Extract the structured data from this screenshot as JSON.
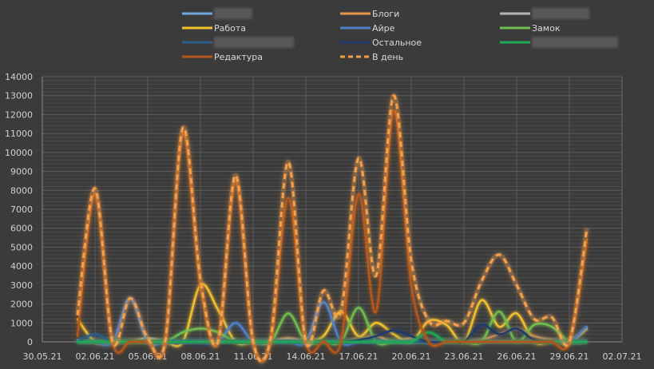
{
  "chart_data": {
    "type": "line",
    "title": "",
    "xlabel": "",
    "ylabel": "",
    "smooth": true,
    "grid": true,
    "legend_position": "top",
    "ylim": [
      0,
      14000
    ],
    "y_ticks": [
      "0",
      "1000",
      "2000",
      "3000",
      "4000",
      "5000",
      "6000",
      "7000",
      "8000",
      "9000",
      "10000",
      "11000",
      "12000",
      "13000",
      "14000"
    ],
    "x_ticks": [
      "30.05.21",
      "02.06.21",
      "05.06.21",
      "08.06.21",
      "11.06.21",
      "14.06.21",
      "17.06.21",
      "20.06.21",
      "23.06.21",
      "26.06.21",
      "29.06.21",
      "02.07.21"
    ],
    "x": [
      "01.06.21",
      "02.06.21",
      "03.06.21",
      "04.06.21",
      "05.06.21",
      "06.06.21",
      "07.06.21",
      "08.06.21",
      "09.06.21",
      "10.06.21",
      "11.06.21",
      "12.06.21",
      "13.06.21",
      "14.06.21",
      "15.06.21",
      "16.06.21",
      "17.06.21",
      "18.06.21",
      "19.06.21",
      "20.06.21",
      "21.06.21",
      "22.06.21",
      "23.06.21",
      "24.06.21",
      "25.06.21",
      "26.06.21",
      "27.06.21",
      "28.06.21",
      "29.06.21",
      "30.06.21"
    ],
    "series": [
      {
        "name": "",
        "redacted": true,
        "color": "#6fa8dc",
        "dashed": false,
        "values": [
          100,
          0,
          0,
          0,
          0,
          0,
          0,
          0,
          0,
          0,
          0,
          0,
          0,
          0,
          0,
          0,
          0,
          0,
          0,
          0,
          0,
          0,
          0,
          0,
          0,
          0,
          0,
          0,
          0,
          0
        ]
      },
      {
        "name": "Блоги",
        "color": "#e8954e",
        "dashed": false,
        "values": [
          0,
          0,
          0,
          0,
          0,
          0,
          0,
          0,
          0,
          0,
          0,
          0,
          200,
          0,
          0,
          0,
          200,
          300,
          0,
          200,
          0,
          0,
          0,
          100,
          400,
          700,
          300,
          100,
          0,
          0
        ]
      },
      {
        "name": "",
        "redacted": true,
        "color": "#b5b5b5",
        "dashed": false,
        "values": [
          0,
          0,
          0,
          0,
          200,
          0,
          0,
          0,
          0,
          0,
          0,
          0,
          100,
          0,
          0,
          0,
          0,
          0,
          0,
          0,
          0,
          0,
          0,
          0,
          0,
          0,
          0,
          0,
          0,
          0
        ]
      },
      {
        "name": "Работа",
        "color": "#f2c12e",
        "dashed": false,
        "values": [
          1200,
          0,
          0,
          0,
          100,
          0,
          0,
          3000,
          1700,
          0,
          0,
          0,
          0,
          0,
          300,
          1600,
          300,
          1000,
          400,
          0,
          1100,
          900,
          0,
          2200,
          800,
          1500,
          0,
          0,
          0,
          700
        ]
      },
      {
        "name": "Айре",
        "color": "#4f7fc9",
        "dashed": false,
        "values": [
          0,
          0,
          0,
          2300,
          0,
          0,
          0,
          0,
          0,
          1000,
          0,
          0,
          0,
          0,
          2100,
          0,
          0,
          0,
          0,
          0,
          0,
          0,
          0,
          0,
          0,
          0,
          0,
          0,
          0,
          800
        ]
      },
      {
        "name": "Замок",
        "color": "#6fbf4f",
        "dashed": false,
        "values": [
          0,
          0,
          0,
          0,
          0,
          0,
          500,
          700,
          500,
          0,
          0,
          0,
          1500,
          0,
          0,
          0,
          1800,
          0,
          0,
          0,
          0,
          0,
          0,
          0,
          1600,
          0,
          900,
          800,
          0,
          0
        ]
      },
      {
        "name": "",
        "redacted": true,
        "color": "#2e5d8a",
        "dashed": false,
        "values": [
          0,
          400,
          0,
          0,
          0,
          0,
          0,
          0,
          0,
          0,
          0,
          0,
          0,
          0,
          0,
          0,
          0,
          0,
          0,
          0,
          0,
          0,
          0,
          0,
          0,
          0,
          0,
          0,
          0,
          0
        ]
      },
      {
        "name": "Остальное",
        "color": "#1f3a6b",
        "dashed": false,
        "values": [
          0,
          0,
          0,
          0,
          0,
          0,
          0,
          0,
          0,
          0,
          0,
          0,
          0,
          0,
          0,
          0,
          100,
          300,
          600,
          300,
          0,
          0,
          0,
          900,
          400,
          700,
          100,
          0,
          0,
          0
        ]
      },
      {
        "name": "",
        "redacted": true,
        "color": "#1faa55",
        "dashed": false,
        "values": [
          0,
          0,
          0,
          0,
          0,
          0,
          0,
          0,
          0,
          0,
          0,
          0,
          0,
          0,
          0,
          0,
          0,
          0,
          0,
          0,
          500,
          0,
          0,
          0,
          0,
          0,
          0,
          0,
          0,
          0
        ]
      },
      {
        "name": "Редактура",
        "color": "#b5561a",
        "dashed": false,
        "values": [
          300,
          7800,
          0,
          0,
          0,
          0,
          11000,
          3000,
          0,
          8500,
          0,
          0,
          7600,
          0,
          0,
          0,
          7800,
          1600,
          12200,
          3000,
          0,
          0,
          0,
          0,
          0,
          0,
          0,
          0,
          0,
          5400
        ]
      },
      {
        "name": "В день",
        "color": "#f5a04a",
        "dashed": true,
        "values": [
          1400,
          8100,
          0,
          2300,
          200,
          50,
          11300,
          3300,
          0,
          8800,
          0,
          200,
          9500,
          0,
          2700,
          1600,
          9700,
          3500,
          13000,
          4300,
          1100,
          1100,
          1000,
          3200,
          4600,
          3000,
          1200,
          1300,
          0,
          6000
        ]
      }
    ]
  }
}
